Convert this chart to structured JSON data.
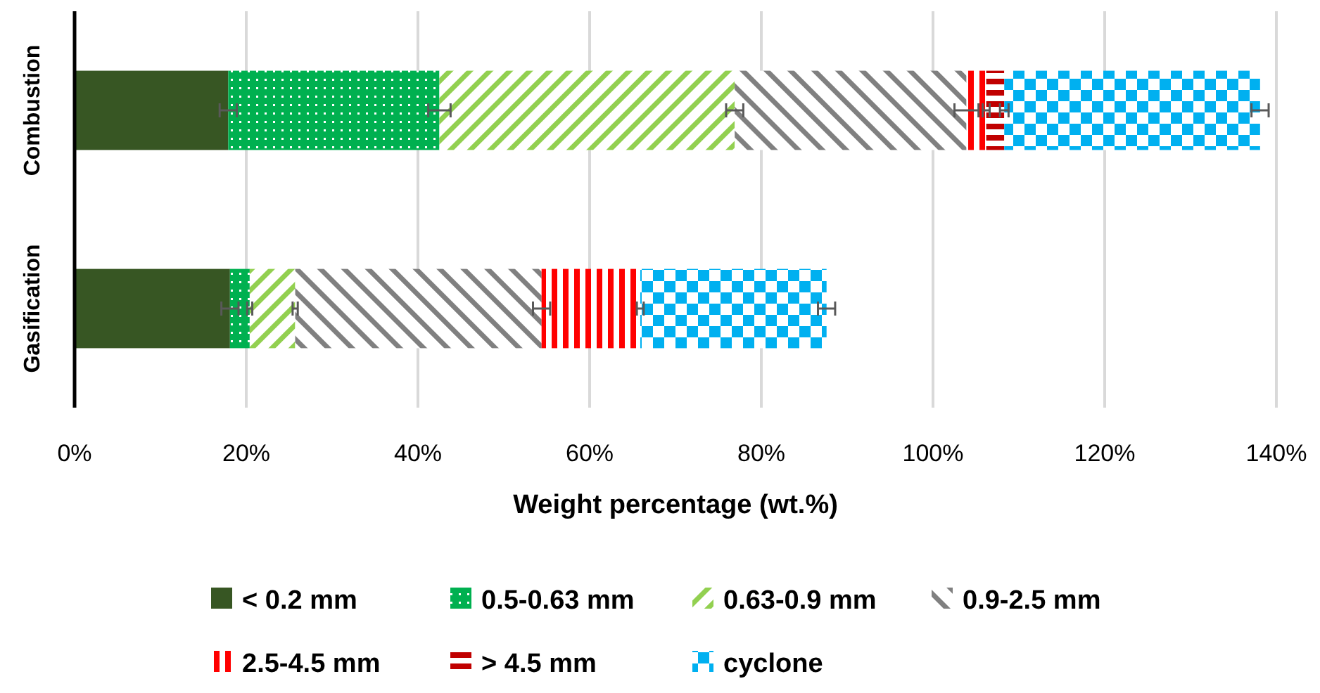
{
  "chart_data": {
    "type": "bar",
    "orientation": "horizontal",
    "stacked": true,
    "categories": [
      "Combustion",
      "Gasification"
    ],
    "xlabel": "Weight percentage (wt.%)",
    "xlim": [
      0,
      140
    ],
    "xticks": [
      {
        "value": 0,
        "label": "0%"
      },
      {
        "value": 20,
        "label": "20%"
      },
      {
        "value": 40,
        "label": "40%"
      },
      {
        "value": 60,
        "label": "60%"
      },
      {
        "value": 80,
        "label": "80%"
      },
      {
        "value": 100,
        "label": "100%"
      },
      {
        "value": 120,
        "label": "120%"
      },
      {
        "value": 140,
        "label": "140%"
      }
    ],
    "grid": "x",
    "legend": "bottom",
    "series": [
      {
        "name": "< 0.2 mm",
        "color": "#375623",
        "values": [
          17.9,
          18.1
        ],
        "errors": [
          1.0,
          1.0
        ]
      },
      {
        "name": "0.5-0.63 mm",
        "color": "#00b050",
        "values": [
          24.6,
          2.3
        ],
        "errors": [
          1.3,
          0.3
        ]
      },
      {
        "name": "0.63-0.9 mm",
        "color": "#92d050",
        "values": [
          34.4,
          5.3
        ],
        "errors": [
          1.0,
          0.3
        ]
      },
      {
        "name": "0.9-2.5 mm",
        "color": "#808080",
        "values": [
          27.0,
          28.7
        ],
        "errors": [
          1.4,
          1.0
        ]
      },
      {
        "name": "2.5-4.5 mm",
        "color": "#ff0000",
        "values": [
          2.3,
          11.5
        ],
        "errors": [
          0.4,
          0.4
        ]
      },
      {
        "name": "> 4.5 mm",
        "color": "#c00000",
        "values": [
          2.1,
          0
        ],
        "errors": [
          0.5,
          null
        ]
      },
      {
        "name": "cyclone",
        "color": "#00b0f0",
        "values": [
          29.8,
          21.7
        ],
        "errors": [
          1.0,
          1.0
        ]
      }
    ]
  }
}
